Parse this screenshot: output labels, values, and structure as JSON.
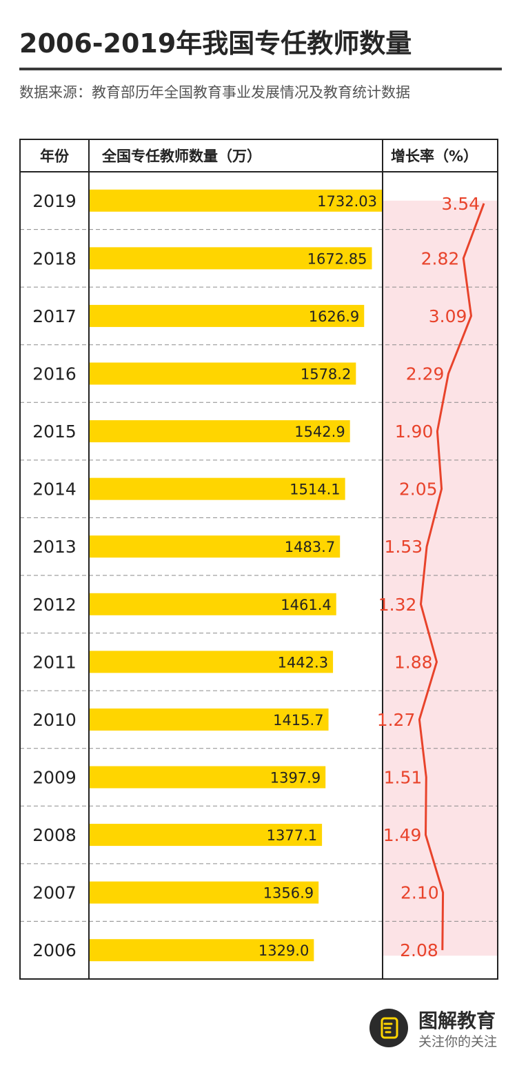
{
  "page": {
    "title": "2006-2019年我国专任教师数量",
    "source": "数据来源：教育部历年全国教育事业发展情况及教育统计数据"
  },
  "brand": {
    "name": "图解教育",
    "slogan": "关注你的关注",
    "logo_icon": "fist-logo-icon"
  },
  "colors": {
    "bar": "#FFD500",
    "line": "#E8432B",
    "band": "#FCE3E6",
    "border": "#222222",
    "rule": "#3a3a3a"
  },
  "chart_data": {
    "type": "table",
    "columns": [
      "年份",
      "全国专任教师数量（万）",
      "增长率（%）"
    ],
    "years": [
      "2019",
      "2018",
      "2017",
      "2016",
      "2015",
      "2014",
      "2013",
      "2012",
      "2011",
      "2010",
      "2009",
      "2008",
      "2007",
      "2006"
    ],
    "teacher_counts": [
      "1732.03",
      "1672.85",
      "1626.9",
      "1578.2",
      "1542.9",
      "1514.1",
      "1483.7",
      "1461.4",
      "1442.3",
      "1415.7",
      "1397.9",
      "1377.1",
      "1356.9",
      "1329.0"
    ],
    "growth_rates": [
      "3.54",
      "2.82",
      "3.09",
      "2.29",
      "1.90",
      "2.05",
      "1.53",
      "1.32",
      "1.88",
      "1.27",
      "1.51",
      "1.49",
      "2.10",
      "2.08"
    ],
    "bar_xlim": [
      0,
      1732.03
    ],
    "rate_xlim": [
      0,
      4.0
    ]
  }
}
